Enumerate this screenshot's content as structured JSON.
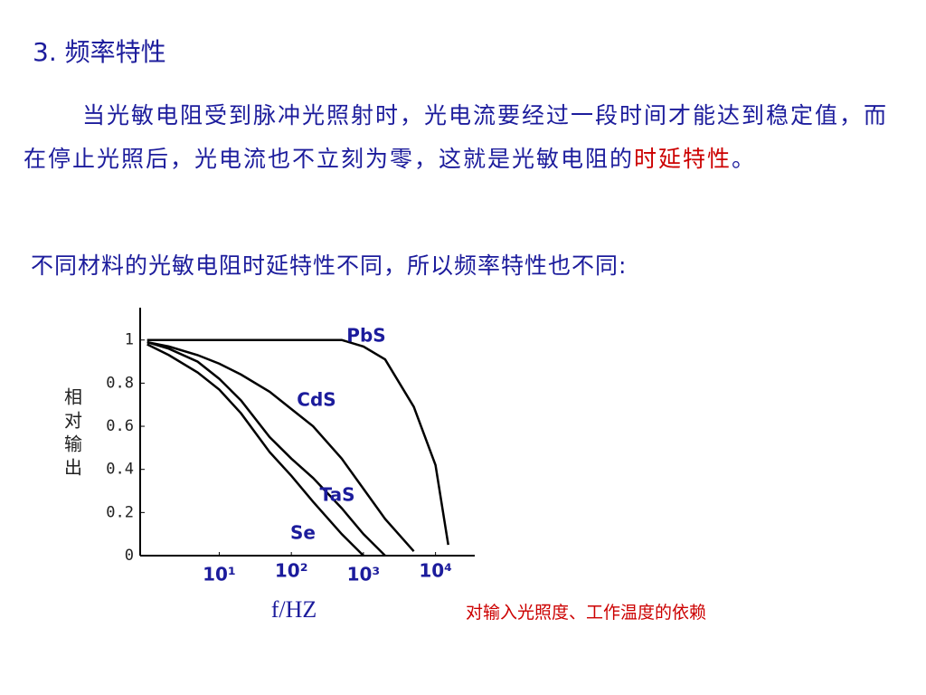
{
  "slide": {
    "title": "3. 频率特性",
    "paragraph1": [
      "当光敏电阻受到脉冲光照射时，光电流要经过一段时间才能达到稳定值，而在停止光照后，光电流也不立刻为零，这就是光敏电阻的",
      "时延特性",
      "。"
    ],
    "paragraph2": "不同材料的光敏电阻时延特性不同，所以频率特性也不同:",
    "note": "对输入光照度、工作温度的依赖"
  },
  "chart_data": {
    "type": "line",
    "x_label": "f/HZ",
    "y_label": "相对输出",
    "xscale": "log",
    "xlim": [
      0.8,
      35000
    ],
    "ylim": [
      0,
      1.15
    ],
    "xticks": [
      {
        "value": 10,
        "label": "10¹"
      },
      {
        "value": 100,
        "label": "10²"
      },
      {
        "value": 1000,
        "label": "10³"
      },
      {
        "value": 10000,
        "label": "10⁴"
      }
    ],
    "yticks": [
      0,
      {
        "value": 0.2,
        "label": "0.2"
      },
      {
        "value": 0.4,
        "label": "0.4"
      },
      {
        "value": 0.6,
        "label": "0.6"
      },
      {
        "value": 0.8,
        "label": "0.8"
      },
      1
    ],
    "grid": false,
    "x": [
      1,
      2,
      5,
      10,
      20,
      50,
      100,
      200,
      500,
      1000,
      2000,
      5000,
      10000,
      15000
    ],
    "series": [
      {
        "name": "PbS",
        "color": "#000000",
        "values": [
          1,
          1,
          1,
          1,
          1,
          1,
          1,
          1,
          1,
          0.97,
          0.91,
          0.69,
          0.42,
          0.05
        ]
      },
      {
        "name": "CdS",
        "color": "#000000",
        "values": [
          0.99,
          0.97,
          0.93,
          0.89,
          0.84,
          0.76,
          0.68,
          0.6,
          0.45,
          0.31,
          0.17,
          0.02,
          null,
          null
        ]
      },
      {
        "name": "TaS",
        "color": "#000000",
        "values": [
          0.99,
          0.96,
          0.9,
          0.82,
          0.72,
          0.55,
          0.45,
          0.36,
          0.22,
          0.1,
          0,
          null,
          null,
          null
        ]
      },
      {
        "name": "Se",
        "color": "#000000",
        "values": [
          0.98,
          0.93,
          0.85,
          0.77,
          0.66,
          0.48,
          0.37,
          0.25,
          0.1,
          0,
          null,
          null,
          null,
          null
        ]
      }
    ]
  }
}
